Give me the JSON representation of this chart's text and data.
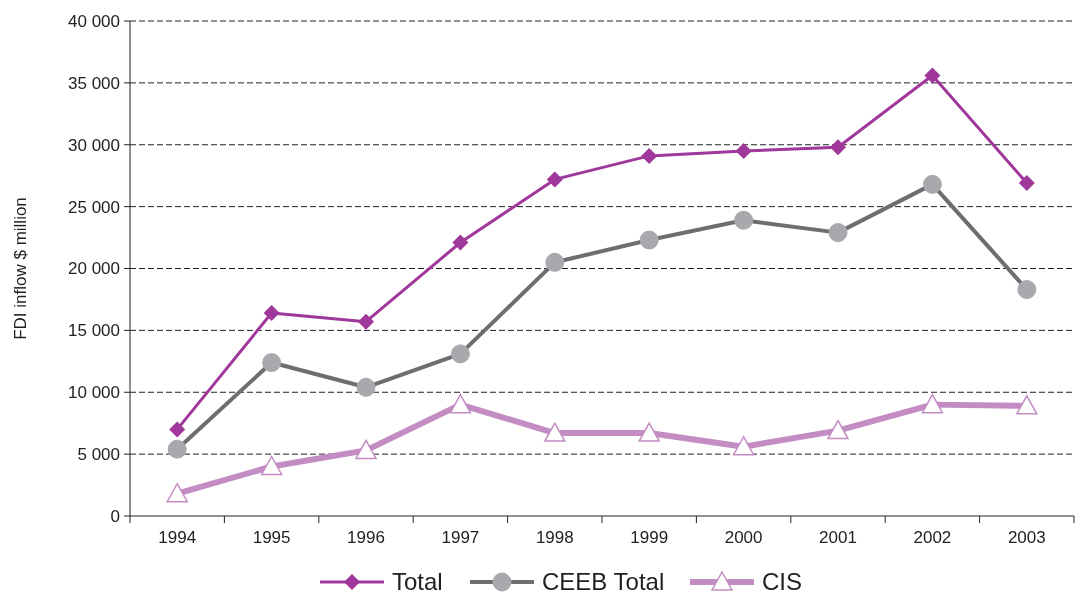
{
  "chart_data": {
    "type": "line",
    "ylabel": "FDI inflow $ million",
    "categories": [
      "1994",
      "1995",
      "1996",
      "1997",
      "1998",
      "1999",
      "2000",
      "2001",
      "2002",
      "2003"
    ],
    "series": [
      {
        "name": "Total",
        "color": "#a0379a",
        "marker": "diamond",
        "values": [
          7000,
          16400,
          15700,
          22100,
          27200,
          29100,
          29500,
          29800,
          35600,
          26900
        ]
      },
      {
        "name": "CEEB Total",
        "color": "#6d6e71",
        "marker": "circle",
        "values": [
          5400,
          12400,
          10400,
          13100,
          20500,
          22300,
          23900,
          22900,
          26800,
          18300
        ]
      },
      {
        "name": "CIS",
        "color": "#c38dc4",
        "marker": "triangle",
        "values": [
          1800,
          4000,
          5300,
          9000,
          6700,
          6700,
          5600,
          6900,
          9000,
          8900
        ]
      }
    ],
    "ylim": [
      0,
      40000
    ],
    "yticks": [
      0,
      {
        "value": 5000,
        "label": "5 000"
      },
      {
        "value": 10000,
        "label": "10 000"
      },
      {
        "value": 15000,
        "label": "15 000"
      },
      {
        "value": 20000,
        "label": "20 000"
      },
      {
        "value": 25000,
        "label": "25 000"
      },
      {
        "value": 30000,
        "label": "30 000"
      },
      {
        "value": 35000,
        "label": "35 000"
      },
      {
        "value": 40000,
        "label": "40 000"
      }
    ],
    "grid": "y",
    "legend": "bottom"
  }
}
